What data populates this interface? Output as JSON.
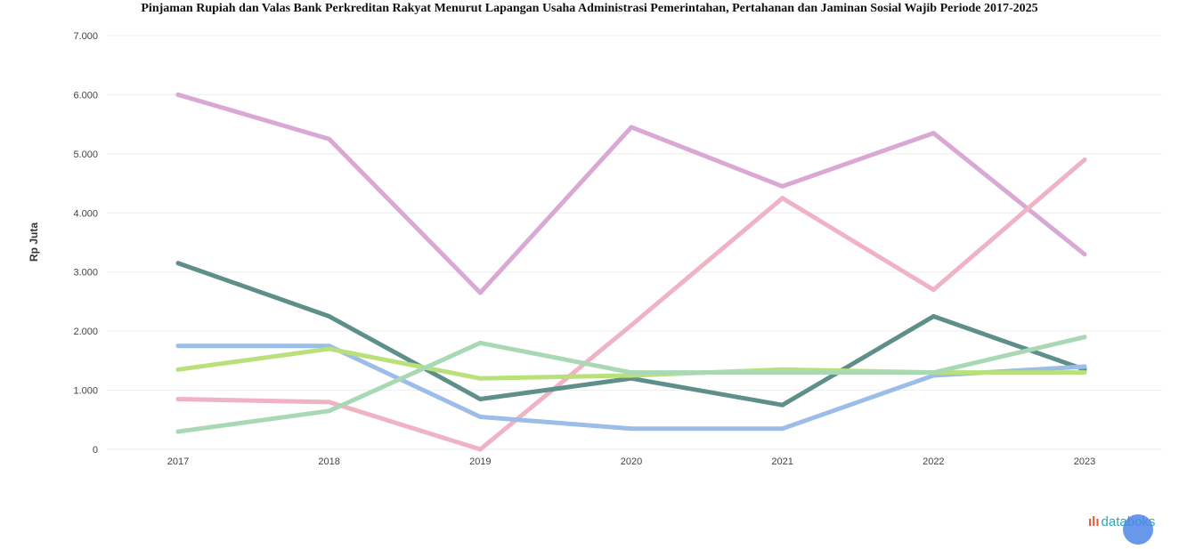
{
  "chart_data": {
    "type": "line",
    "title": "Pinjaman Rupiah dan Valas Bank Perkreditan Rakyat Menurut Lapangan Usaha Administrasi Pemerintahan, Pertahanan dan Jaminan Sosial Wajib Periode 2017-2025",
    "ylabel": "Rp Juta",
    "xlabel": "",
    "categories": [
      "2017",
      "2018",
      "2019",
      "2020",
      "2021",
      "2022",
      "2023"
    ],
    "yticks": [
      "0",
      "1.000",
      "2.000",
      "3.000",
      "4.000",
      "5.000",
      "6.000",
      "7.000"
    ],
    "ylim": [
      0,
      7000
    ],
    "grid": true,
    "series": [
      {
        "color": "#d9a8d4",
        "values": [
          6000,
          5250,
          2650,
          5450,
          4450,
          5350,
          3300
        ]
      },
      {
        "color": "#efb3c4",
        "values": [
          850,
          800,
          0,
          2100,
          4250,
          2700,
          4900
        ]
      },
      {
        "color": "#5f8f8a",
        "values": [
          3150,
          2250,
          850,
          1200,
          750,
          2250,
          1350
        ]
      },
      {
        "color": "#9bbde8",
        "values": [
          1750,
          1750,
          550,
          350,
          350,
          1250,
          1400
        ]
      },
      {
        "color": "#b9e07a",
        "values": [
          1350,
          1700,
          1200,
          1250,
          1350,
          1300,
          1300
        ]
      },
      {
        "color": "#a9d9b4",
        "values": [
          300,
          650,
          1800,
          1300,
          1300,
          1300,
          1900
        ]
      }
    ]
  },
  "branding": {
    "logo_mark": "ılı",
    "logo_text": "databoks"
  }
}
